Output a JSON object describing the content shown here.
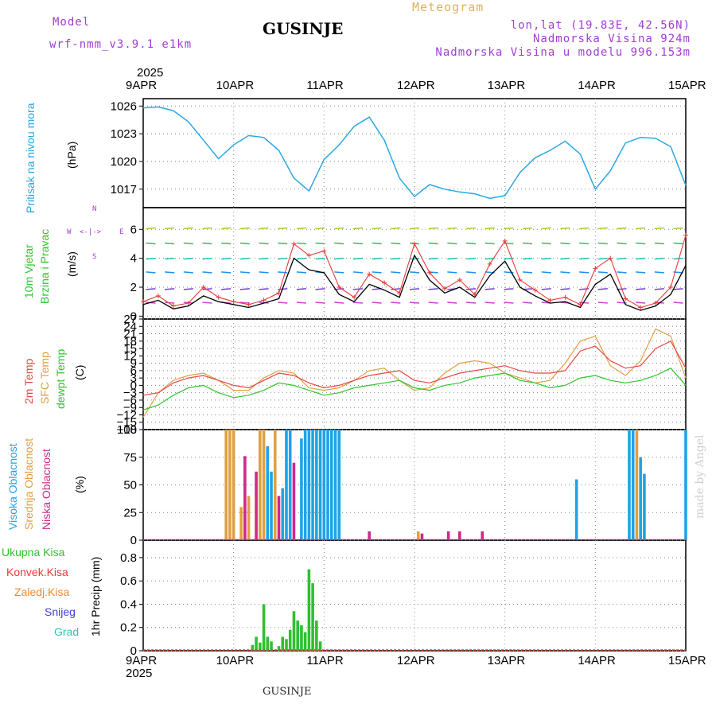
{
  "header": {
    "model_label": "Model",
    "model_name": "wrf-nmm_v3.9.1 e1km",
    "title": "GUSINJE",
    "meteogram": "Meteogram",
    "lonlat": "lon,lat (19.83E, 42.56N)",
    "altitude": "Nadmorska Visina 924m",
    "model_altitude": "Nadmorska Visina u modelu 996.153m"
  },
  "time_axis": {
    "year": "2025",
    "ticks": [
      "9APR",
      "10APR",
      "11APR",
      "12APR",
      "13APR",
      "14APR",
      "15APR"
    ]
  },
  "footer": {
    "station": "GUSINJE",
    "made_by": "made by Angel"
  },
  "colors": {
    "pressure": "#2aa8e0",
    "wind_speed": "#000000",
    "gust": "#e83a3a",
    "temp_2m": "#e84545",
    "temp_sfc": "#e0a040",
    "dewpoint": "#2ec42e",
    "cloud_high": "#1fa3e8",
    "cloud_mid": "#e0a040",
    "cloud_low": "#cc2a8a",
    "precip_total": "#30c030",
    "precip_conv": "#e83a3a",
    "snow": "#4040d0"
  },
  "panels": {
    "pressure": {
      "ylabel_side": "Pritisak na nivou mora",
      "ylabel_unit": "(hPa)"
    },
    "wind": {
      "ylabel_side1": "10m Vjetar",
      "ylabel_side2": "Brzina i Pravac",
      "ylabel_unit": "(m/s)",
      "compass_w": "W",
      "compass_e": "E",
      "compass_arrow": "<-|->",
      "compass_n": "N",
      "compass_s": "S"
    },
    "temp": {
      "lbl1": "2m Temp",
      "lbl2": "SFC Temp",
      "lbl3": "dewpt Temp",
      "ylabel_unit": "(C)"
    },
    "cloud": {
      "lbl1": "Visoka Oblacnost",
      "lbl2": "Srednja Oblacnost",
      "lbl3": "Niska Oblacnost",
      "ylabel_unit": "(%)"
    },
    "precip": {
      "lbl_total": "Ukupna Kisa",
      "lbl_conv": "Konvek.Kisa",
      "lbl_frz": "Zaledj.Kisa",
      "lbl_snow": "Snijeg",
      "lbl_grad": "Grad",
      "ylabel_unit": "1hr Precip (mm)"
    }
  },
  "chart_data": [
    {
      "type": "line",
      "title": "",
      "ylabel": "Pritisak na nivou mora (hPa)",
      "ylim": [
        1015,
        1026.8
      ],
      "yticks": [
        1017,
        1020,
        1023,
        1026
      ],
      "x_hours": [
        0,
        4,
        8,
        12,
        16,
        20,
        24,
        28,
        32,
        36,
        40,
        44,
        48,
        52,
        56,
        60,
        64,
        68,
        72,
        76,
        80,
        84,
        88,
        92,
        96,
        100,
        104,
        108,
        112,
        116,
        120,
        124,
        128,
        132,
        136,
        140,
        144
      ],
      "series": [
        {
          "name": "",
          "values": [
            1025.8,
            1025.9,
            1025.5,
            1024.3,
            1022.3,
            1020.3,
            1021.8,
            1022.8,
            1022.6,
            1021.2,
            1018.2,
            1016.8,
            1020.2,
            1021.8,
            1023.8,
            1024.8,
            1022.3,
            1018.2,
            1016.2,
            1017.5,
            1017.0,
            1016.7,
            1016.5,
            1016.0,
            1016.3,
            1018.8,
            1020.4,
            1021.2,
            1022.2,
            1020.8,
            1017.0,
            1019.0,
            1022.0,
            1022.6,
            1022.5,
            1021.6,
            1017.4
          ]
        }
      ]
    },
    {
      "type": "line",
      "title": "",
      "ylabel": "10m Vjetar Brzina i Pravac (m/s)",
      "ylim": [
        -0.2,
        7.5
      ],
      "yticks": [
        0,
        2,
        4,
        6
      ],
      "x_hours": [
        0,
        4,
        8,
        12,
        16,
        20,
        24,
        28,
        32,
        36,
        40,
        44,
        48,
        52,
        56,
        60,
        64,
        68,
        72,
        76,
        80,
        84,
        88,
        92,
        96,
        100,
        104,
        108,
        112,
        116,
        120,
        124,
        128,
        132,
        136,
        140,
        144
      ],
      "series": [
        {
          "name": "",
          "values": [
            0.8,
            1.1,
            0.5,
            0.7,
            1.4,
            1.0,
            0.8,
            0.6,
            0.9,
            1.2,
            4.0,
            3.2,
            3.0,
            1.5,
            1.0,
            2.2,
            1.8,
            1.3,
            4.2,
            2.5,
            1.6,
            2.0,
            1.3,
            2.8,
            3.8,
            2.0,
            1.4,
            0.9,
            1.0,
            0.6,
            2.2,
            2.9,
            0.8,
            0.4,
            0.7,
            1.5,
            3.5
          ]
        },
        {
          "name": "",
          "values": [
            1.0,
            1.4,
            0.7,
            0.9,
            2.0,
            1.3,
            1.0,
            0.8,
            1.1,
            1.6,
            5.0,
            4.2,
            4.5,
            2.0,
            1.3,
            2.9,
            2.3,
            1.6,
            5.0,
            3.0,
            1.9,
            2.5,
            1.5,
            3.6,
            5.2,
            2.5,
            1.8,
            1.1,
            1.3,
            0.8,
            3.3,
            4.0,
            1.2,
            0.6,
            0.9,
            2.0,
            5.6
          ]
        }
      ]
    },
    {
      "type": "line",
      "title": "",
      "ylabel": "2m Temp / SFC Temp / dewpt Temp (C)",
      "ylim": [
        -18,
        27
      ],
      "yticks": [
        -18,
        -15,
        -12,
        -9,
        -6,
        -3,
        0,
        3,
        6,
        9,
        12,
        15,
        18,
        21,
        24,
        27
      ],
      "x_hours": [
        0,
        4,
        8,
        12,
        16,
        20,
        24,
        28,
        32,
        36,
        40,
        44,
        48,
        52,
        56,
        60,
        64,
        68,
        72,
        76,
        80,
        84,
        88,
        92,
        96,
        100,
        104,
        108,
        112,
        116,
        120,
        124,
        128,
        132,
        136,
        140,
        144
      ],
      "series": [
        {
          "name": "2m Temp",
          "values": [
            -4,
            -3,
            1,
            3,
            4,
            2,
            0,
            -1,
            2,
            5,
            4,
            1,
            -1,
            0,
            2,
            4,
            5,
            6,
            2,
            1,
            3,
            5,
            6,
            7,
            8,
            6,
            5,
            5,
            6,
            14,
            16,
            10,
            7,
            8,
            15,
            18,
            7
          ]
        },
        {
          "name": "SFC Temp",
          "values": [
            -13,
            -3,
            2,
            4,
            5,
            2,
            -2,
            -2,
            3,
            6,
            5,
            -1,
            -2,
            -1,
            2,
            6,
            7,
            2,
            -2,
            -1,
            5,
            9,
            10,
            9,
            5,
            3,
            1,
            2,
            9,
            18,
            20,
            8,
            4,
            10,
            23,
            20,
            3
          ]
        },
        {
          "name": "dewpt Temp",
          "values": [
            -10,
            -8,
            -4,
            -1,
            0,
            -3,
            -5,
            -4,
            -2,
            1,
            0,
            -2,
            -4,
            -3,
            -1,
            0,
            1,
            2,
            -1,
            -2,
            0,
            1,
            3,
            4,
            5,
            2,
            1,
            -1,
            0,
            3,
            4,
            2,
            1,
            2,
            4,
            7,
            0
          ]
        }
      ]
    },
    {
      "type": "bar",
      "title": "",
      "ylabel": "Visoka / Srednja / Niska Oblacnost (%)",
      "ylim": [
        0,
        100
      ],
      "yticks": [
        0,
        25,
        50,
        75,
        100
      ],
      "bars": [
        {
          "h": 22,
          "s": "cloud_mid",
          "v": 100
        },
        {
          "h": 23,
          "s": "cloud_mid",
          "v": 100
        },
        {
          "h": 24,
          "s": "cloud_mid",
          "v": 100
        },
        {
          "h": 26,
          "s": "cloud_mid",
          "v": 30
        },
        {
          "h": 27,
          "s": "cloud_low",
          "v": 76
        },
        {
          "h": 28,
          "s": "cloud_mid",
          "v": 40
        },
        {
          "h": 30,
          "s": "cloud_low",
          "v": 62
        },
        {
          "h": 31,
          "s": "cloud_mid",
          "v": 100
        },
        {
          "h": 32,
          "s": "cloud_mid",
          "v": 100
        },
        {
          "h": 33,
          "s": "cloud_high",
          "v": 85
        },
        {
          "h": 34,
          "s": "cloud_high",
          "v": 62
        },
        {
          "h": 35,
          "s": "cloud_mid",
          "v": 100
        },
        {
          "h": 36,
          "s": "cloud_low",
          "v": 40
        },
        {
          "h": 37,
          "s": "cloud_high",
          "v": 47
        },
        {
          "h": 38,
          "s": "cloud_high",
          "v": 100
        },
        {
          "h": 39,
          "s": "cloud_high",
          "v": 100
        },
        {
          "h": 40,
          "s": "cloud_low",
          "v": 70
        },
        {
          "h": 42,
          "s": "cloud_high",
          "v": 92
        },
        {
          "h": 43,
          "s": "cloud_high",
          "v": 100
        },
        {
          "h": 44,
          "s": "cloud_high",
          "v": 100
        },
        {
          "h": 45,
          "s": "cloud_high",
          "v": 100
        },
        {
          "h": 46,
          "s": "cloud_high",
          "v": 100
        },
        {
          "h": 47,
          "s": "cloud_high",
          "v": 100
        },
        {
          "h": 48,
          "s": "cloud_high",
          "v": 100
        },
        {
          "h": 49,
          "s": "cloud_high",
          "v": 100
        },
        {
          "h": 50,
          "s": "cloud_high",
          "v": 100
        },
        {
          "h": 51,
          "s": "cloud_high",
          "v": 100
        },
        {
          "h": 52,
          "s": "cloud_high",
          "v": 100
        },
        {
          "h": 60,
          "s": "cloud_low",
          "v": 8
        },
        {
          "h": 73,
          "s": "cloud_mid",
          "v": 8
        },
        {
          "h": 74,
          "s": "cloud_low",
          "v": 6
        },
        {
          "h": 81,
          "s": "cloud_low",
          "v": 8
        },
        {
          "h": 84,
          "s": "cloud_low",
          "v": 8
        },
        {
          "h": 90,
          "s": "cloud_low",
          "v": 8
        },
        {
          "h": 115,
          "s": "cloud_high",
          "v": 55
        },
        {
          "h": 129,
          "s": "cloud_high",
          "v": 100
        },
        {
          "h": 130,
          "s": "cloud_high",
          "v": 100
        },
        {
          "h": 131,
          "s": "cloud_mid",
          "v": 100
        },
        {
          "h": 132,
          "s": "cloud_high",
          "v": 75
        },
        {
          "h": 133,
          "s": "cloud_high",
          "v": 60
        },
        {
          "h": 144,
          "s": "cloud_high",
          "v": 100
        }
      ]
    },
    {
      "type": "bar",
      "title": "",
      "ylabel": "1hr Precip (mm)",
      "ylim": [
        0,
        0.95
      ],
      "yticks": [
        0,
        0.2,
        0.4,
        0.6,
        0.8
      ],
      "bars": [
        {
          "h": 29,
          "s": "precip_total",
          "v": 0.05
        },
        {
          "h": 30,
          "s": "precip_total",
          "v": 0.12
        },
        {
          "h": 31,
          "s": "precip_total",
          "v": 0.07
        },
        {
          "h": 32,
          "s": "precip_total",
          "v": 0.4
        },
        {
          "h": 33,
          "s": "precip_total",
          "v": 0.12
        },
        {
          "h": 34,
          "s": "precip_total",
          "v": 0.08
        },
        {
          "h": 36,
          "s": "precip_total",
          "v": 0.04
        },
        {
          "h": 37,
          "s": "precip_total",
          "v": 0.12
        },
        {
          "h": 38,
          "s": "precip_total",
          "v": 0.1
        },
        {
          "h": 39,
          "s": "precip_total",
          "v": 0.18
        },
        {
          "h": 40,
          "s": "precip_total",
          "v": 0.34
        },
        {
          "h": 41,
          "s": "precip_total",
          "v": 0.26
        },
        {
          "h": 42,
          "s": "precip_total",
          "v": 0.22
        },
        {
          "h": 43,
          "s": "precip_total",
          "v": 0.16
        },
        {
          "h": 44,
          "s": "precip_total",
          "v": 0.7
        },
        {
          "h": 45,
          "s": "precip_total",
          "v": 0.58
        },
        {
          "h": 46,
          "s": "precip_total",
          "v": 0.26
        },
        {
          "h": 47,
          "s": "precip_total",
          "v": 0.08
        }
      ]
    }
  ]
}
